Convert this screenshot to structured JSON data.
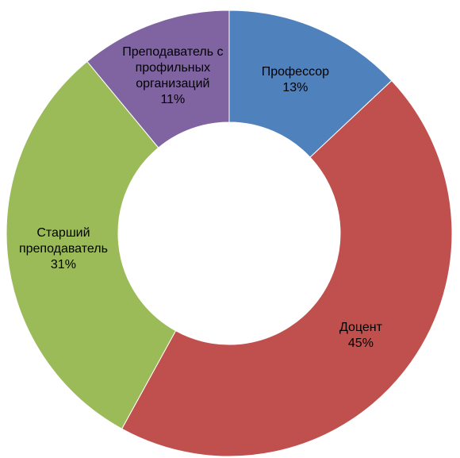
{
  "chart_data": {
    "type": "donut",
    "categories": [
      "Профессор",
      "Доцент",
      "Старший преподаватель",
      "Преподаватель с профильных организаций"
    ],
    "values": [
      13,
      45,
      31,
      11
    ],
    "value_labels": [
      "13%",
      "45%",
      "31%",
      "11%"
    ],
    "colors": [
      "#4f81bd",
      "#c0504d",
      "#9bbb59",
      "#8064a2"
    ]
  }
}
